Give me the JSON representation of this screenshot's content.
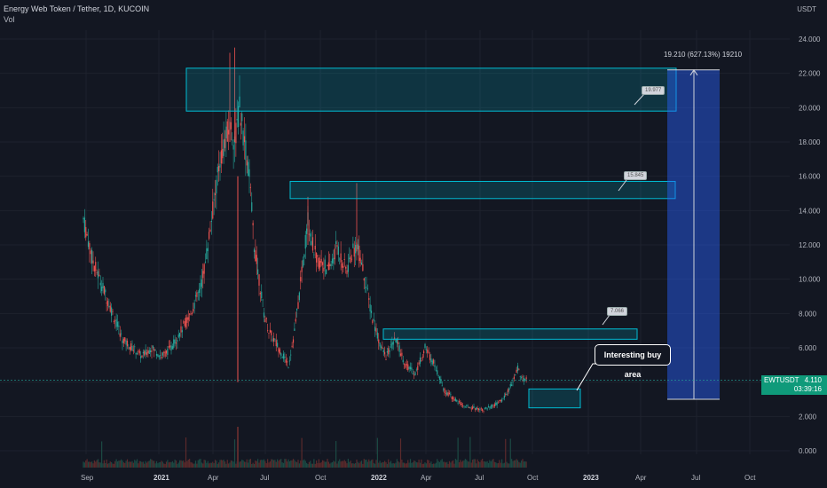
{
  "header": {
    "title": "Energy Web Token / Tether, 1D, KUCOIN",
    "volume_label": "Vol"
  },
  "axis_currency": "USDT",
  "price_tag": {
    "symbol": "EWTUSDT",
    "price": "4.110",
    "countdown": "03:39:16"
  },
  "measure_label": "19.210 (627.13%) 19210",
  "callout_text": "Interesting buy area",
  "box_notes": [
    "19.977",
    "15.845",
    "7.066"
  ],
  "chart_data": {
    "type": "candlestick",
    "title": "Energy Web Token / Tether, 1D, KUCOIN",
    "y_axis": {
      "min": 0,
      "max": 24,
      "ticks": [
        "0.000",
        "2.000",
        "4.000",
        "6.000",
        "8.000",
        "10.000",
        "12.000",
        "14.000",
        "16.000",
        "18.000",
        "20.000",
        "22.000",
        "24.000"
      ]
    },
    "x_ticks": [
      {
        "label": "Sep",
        "bold": false
      },
      {
        "label": "2021",
        "bold": true
      },
      {
        "label": "Apr",
        "bold": false
      },
      {
        "label": "Jul",
        "bold": false
      },
      {
        "label": "Oct",
        "bold": false
      },
      {
        "label": "2022",
        "bold": true
      },
      {
        "label": "Apr",
        "bold": false
      },
      {
        "label": "Jul",
        "bold": false
      },
      {
        "label": "Oct",
        "bold": false
      },
      {
        "label": "2023",
        "bold": true
      },
      {
        "label": "Apr",
        "bold": false
      },
      {
        "label": "Jul",
        "bold": false
      },
      {
        "label": "Oct",
        "bold": false
      }
    ],
    "price_path": [
      [
        0,
        13.5
      ],
      [
        2,
        11.0
      ],
      [
        4,
        9.5
      ],
      [
        6,
        8.0
      ],
      [
        8,
        6.5
      ],
      [
        10,
        6.0
      ],
      [
        12,
        5.5
      ],
      [
        14,
        6.0
      ],
      [
        16,
        5.5
      ],
      [
        18,
        6.0
      ],
      [
        20,
        7.0
      ],
      [
        22,
        8.0
      ],
      [
        24,
        9.5
      ],
      [
        25,
        11.0
      ],
      [
        26,
        13.0
      ],
      [
        27,
        15.0
      ],
      [
        28,
        17.0
      ],
      [
        29,
        18.0
      ],
      [
        30,
        19.0
      ],
      [
        31,
        18.0
      ],
      [
        32,
        20.0
      ],
      [
        33,
        18.0
      ],
      [
        34,
        16.0
      ],
      [
        35,
        12.0
      ],
      [
        36,
        10.0
      ],
      [
        37,
        8.0
      ],
      [
        38,
        7.0
      ],
      [
        40,
        6.0
      ],
      [
        42,
        5.0
      ],
      [
        43,
        6.5
      ],
      [
        44,
        8.5
      ],
      [
        45,
        11.0
      ],
      [
        46,
        13.5
      ],
      [
        47,
        12.0
      ],
      [
        48,
        11.0
      ],
      [
        49,
        11.0
      ],
      [
        50,
        10.5
      ],
      [
        51,
        11.0
      ],
      [
        52,
        12.0
      ],
      [
        53,
        11.0
      ],
      [
        54,
        10.5
      ],
      [
        55,
        11.5
      ],
      [
        56,
        12.0
      ],
      [
        57,
        11.0
      ],
      [
        58,
        9.5
      ],
      [
        59,
        8.0
      ],
      [
        60,
        7.0
      ],
      [
        61,
        6.0
      ],
      [
        62,
        5.5
      ],
      [
        64,
        6.5
      ],
      [
        66,
        5.0
      ],
      [
        68,
        4.5
      ],
      [
        70,
        6.0
      ],
      [
        72,
        5.0
      ],
      [
        74,
        3.5
      ],
      [
        76,
        3.0
      ],
      [
        78,
        2.6
      ],
      [
        80,
        2.5
      ],
      [
        82,
        2.4
      ],
      [
        84,
        2.6
      ],
      [
        86,
        3.0
      ],
      [
        88,
        4.0
      ],
      [
        89,
        4.8
      ],
      [
        90,
        4.2
      ],
      [
        91,
        4.1
      ]
    ],
    "spikes": [
      {
        "x": 31,
        "high": 23.5
      },
      {
        "x": 30,
        "high": 23.2
      },
      {
        "x": 46,
        "high": 14.8
      },
      {
        "x": 56,
        "high": 15.6
      }
    ],
    "zones": [
      {
        "name": "resistance-zone-1",
        "top": 22.3,
        "bottom": 19.8,
        "x_start": 26,
        "x_end": 130
      },
      {
        "name": "resistance-zone-2",
        "top": 15.7,
        "bottom": 14.7,
        "x_start": 46,
        "x_end": 130
      },
      {
        "name": "resistance-zone-3",
        "top": 7.1,
        "bottom": 6.5,
        "x_start": 62,
        "x_end": 121
      },
      {
        "name": "buy-zone",
        "top": 3.6,
        "bottom": 2.5,
        "x_start": 96,
        "x_end": 104
      }
    ],
    "measure": {
      "from": 3.0,
      "to": 22.2,
      "label": "19.210 (627.13%) 19210"
    },
    "current_price": 4.11
  }
}
